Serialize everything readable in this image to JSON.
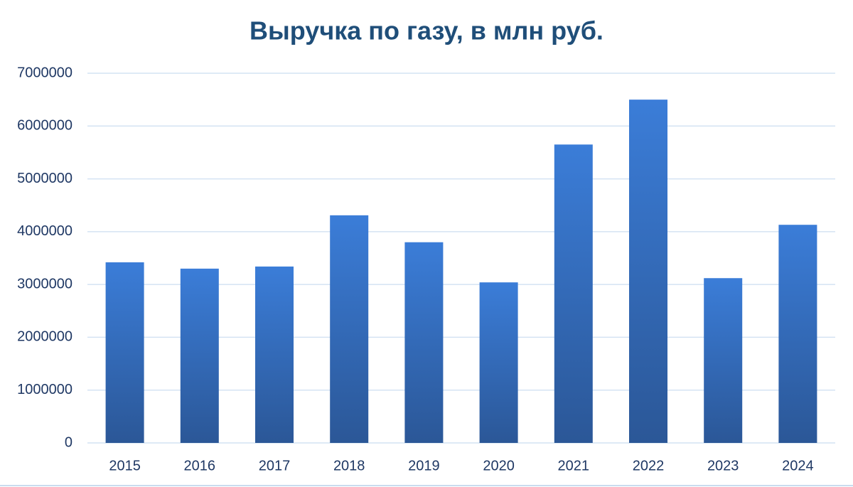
{
  "chart_data": {
    "type": "bar",
    "title": "Выручка по газу, в млн руб.",
    "categories": [
      "2015",
      "2016",
      "2017",
      "2018",
      "2019",
      "2020",
      "2021",
      "2022",
      "2023",
      "2024"
    ],
    "values": [
      3420000,
      3300000,
      3340000,
      4310000,
      3800000,
      3040000,
      5650000,
      6500000,
      3120000,
      4130000
    ],
    "color": "#3b7dd8",
    "ylim": [
      0,
      7000000
    ],
    "yticks": [
      0,
      1000000,
      2000000,
      3000000,
      4000000,
      5000000,
      6000000,
      7000000
    ],
    "grid": true
  }
}
